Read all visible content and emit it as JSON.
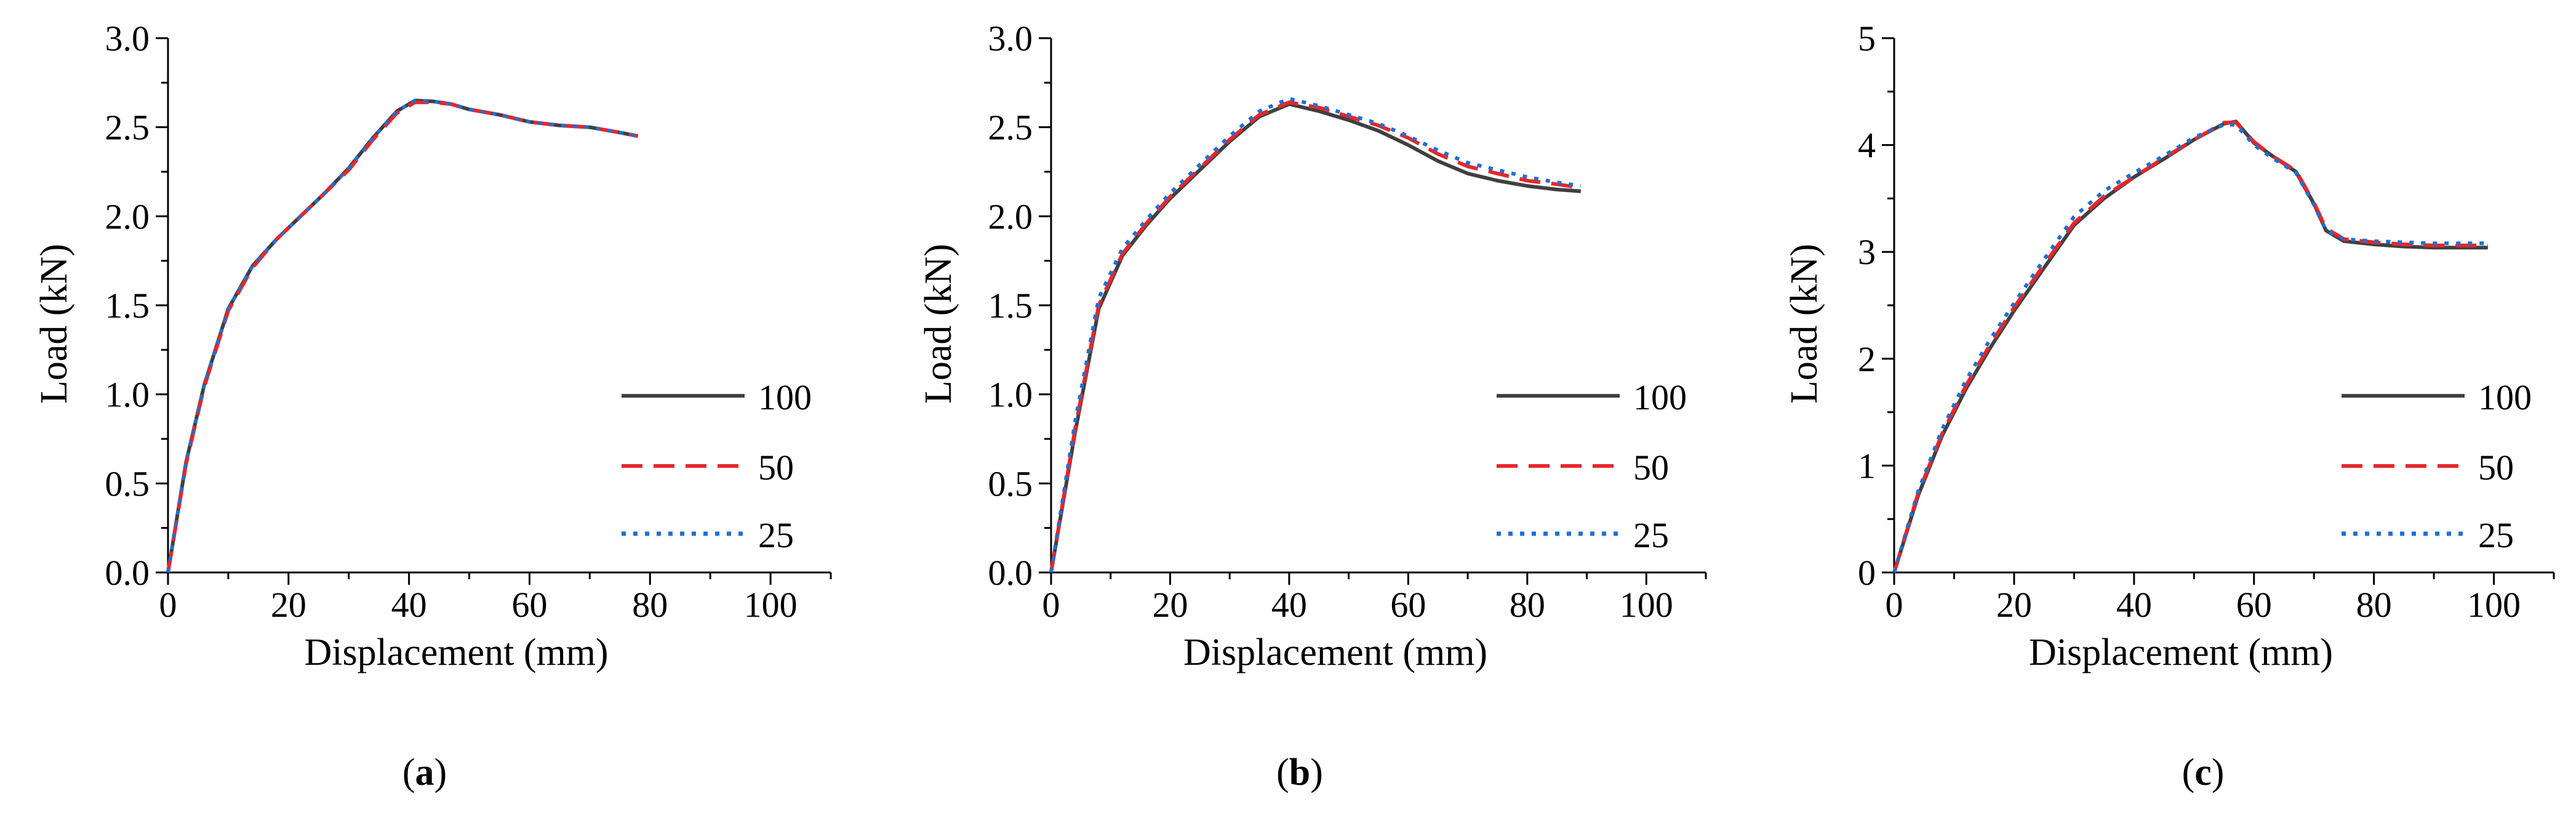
{
  "figure": {
    "panels": [
      {
        "caption": "a"
      },
      {
        "caption": "b"
      },
      {
        "caption": "c"
      }
    ],
    "series_styles": {
      "100": {
        "color": "#404040",
        "dash": "solid"
      },
      "50": {
        "color": "#e8262b",
        "dash": "dashed"
      },
      "25": {
        "color": "#1f6fd1",
        "dash": "dotted"
      }
    }
  },
  "chart_data": [
    {
      "type": "line",
      "title": "",
      "xlabel": "Displacement (mm)",
      "ylabel": "Load (kN)",
      "xlim": [
        0,
        110
      ],
      "ylim": [
        0,
        3.0
      ],
      "xticks": [
        0,
        20,
        40,
        60,
        80,
        100
      ],
      "xtick_labels": [
        "0",
        "20",
        "40",
        "60",
        "80",
        "100"
      ],
      "yticks": [
        0,
        0.5,
        1.0,
        1.5,
        2.0,
        2.5,
        3.0
      ],
      "ytick_labels": [
        "0.0",
        "0.5",
        "1.0",
        "1.5",
        "2.0",
        "2.5",
        "3.0"
      ],
      "legend": [
        "100",
        "50",
        "25"
      ],
      "legend_position": "right",
      "series": [
        {
          "name": "100",
          "x": [
            0,
            3,
            6,
            10,
            14,
            18,
            22,
            26,
            30,
            34,
            38,
            41,
            44,
            47,
            50,
            55,
            60,
            65,
            70,
            75,
            78
          ],
          "y": [
            0,
            0.62,
            1.05,
            1.48,
            1.72,
            1.87,
            2.0,
            2.13,
            2.27,
            2.44,
            2.59,
            2.65,
            2.645,
            2.63,
            2.6,
            2.57,
            2.53,
            2.51,
            2.5,
            2.47,
            2.45
          ]
        },
        {
          "name": "50",
          "x": [
            0,
            3,
            6,
            10,
            14,
            18,
            22,
            26,
            30,
            34,
            38,
            41,
            44,
            47,
            50,
            55,
            60,
            65,
            70,
            75,
            78
          ],
          "y": [
            0,
            0.61,
            1.04,
            1.47,
            1.71,
            1.87,
            2.0,
            2.13,
            2.26,
            2.43,
            2.58,
            2.64,
            2.64,
            2.63,
            2.6,
            2.57,
            2.53,
            2.51,
            2.5,
            2.47,
            2.45
          ]
        },
        {
          "name": "25",
          "x": [
            0,
            3,
            6,
            10,
            14,
            18,
            22,
            26,
            30,
            34,
            38,
            41,
            44,
            47,
            50,
            55,
            60,
            65,
            70,
            75,
            78
          ],
          "y": [
            0,
            0.62,
            1.05,
            1.48,
            1.72,
            1.87,
            2.0,
            2.13,
            2.27,
            2.44,
            2.59,
            2.65,
            2.645,
            2.63,
            2.6,
            2.57,
            2.53,
            2.51,
            2.5,
            2.47,
            2.45
          ]
        }
      ]
    },
    {
      "type": "line",
      "title": "",
      "xlabel": "Displacement (mm)",
      "ylabel": "Load (kN)",
      "xlim": [
        0,
        110
      ],
      "ylim": [
        0,
        3.0
      ],
      "xticks": [
        0,
        20,
        40,
        60,
        80,
        100
      ],
      "xtick_labels": [
        "0",
        "20",
        "40",
        "60",
        "80",
        "100"
      ],
      "yticks": [
        0,
        0.5,
        1.0,
        1.5,
        2.0,
        2.5,
        3.0
      ],
      "ytick_labels": [
        "0.0",
        "0.5",
        "1.0",
        "1.5",
        "2.0",
        "2.5",
        "3.0"
      ],
      "legend": [
        "100",
        "50",
        "25"
      ],
      "legend_position": "right",
      "series": [
        {
          "name": "100",
          "x": [
            0,
            4,
            8,
            12,
            16,
            20,
            25,
            30,
            35,
            40,
            45,
            50,
            55,
            60,
            65,
            70,
            75,
            80,
            85,
            89
          ],
          "y": [
            0,
            0.78,
            1.48,
            1.78,
            1.95,
            2.1,
            2.26,
            2.42,
            2.56,
            2.63,
            2.59,
            2.54,
            2.48,
            2.4,
            2.31,
            2.24,
            2.2,
            2.17,
            2.15,
            2.14
          ]
        },
        {
          "name": "50",
          "x": [
            0,
            4,
            8,
            12,
            16,
            20,
            25,
            30,
            35,
            40,
            45,
            50,
            55,
            60,
            65,
            70,
            75,
            80,
            85,
            89
          ],
          "y": [
            0,
            0.8,
            1.5,
            1.79,
            1.96,
            2.11,
            2.27,
            2.43,
            2.57,
            2.64,
            2.61,
            2.56,
            2.51,
            2.44,
            2.35,
            2.28,
            2.24,
            2.2,
            2.18,
            2.16
          ]
        },
        {
          "name": "25",
          "x": [
            0,
            4,
            8,
            12,
            16,
            20,
            25,
            30,
            35,
            40,
            45,
            50,
            55,
            60,
            65,
            70,
            75,
            80,
            85,
            89
          ],
          "y": [
            0,
            0.84,
            1.54,
            1.82,
            1.98,
            2.13,
            2.29,
            2.45,
            2.59,
            2.66,
            2.62,
            2.57,
            2.52,
            2.45,
            2.37,
            2.3,
            2.26,
            2.22,
            2.19,
            2.17
          ]
        }
      ]
    },
    {
      "type": "line",
      "title": "",
      "xlabel": "Displacement (mm)",
      "ylabel": "Load (kN)",
      "xlim": [
        0,
        110
      ],
      "ylim": [
        0,
        5
      ],
      "xticks": [
        0,
        20,
        40,
        60,
        80,
        100
      ],
      "xtick_labels": [
        "0",
        "20",
        "40",
        "60",
        "80",
        "100"
      ],
      "yticks": [
        0,
        1,
        2,
        3,
        4,
        5
      ],
      "ytick_labels": [
        "0",
        "1",
        "2",
        "3",
        "4",
        "5"
      ],
      "legend": [
        "100",
        "50",
        "25"
      ],
      "legend_position": "right",
      "series": [
        {
          "name": "100",
          "x": [
            0,
            4,
            8,
            12,
            16,
            20,
            25,
            30,
            35,
            40,
            45,
            50,
            55,
            57,
            60,
            63,
            67,
            70,
            72,
            75,
            80,
            85,
            90,
            95,
            99
          ],
          "y": [
            0,
            0.72,
            1.28,
            1.72,
            2.1,
            2.45,
            2.85,
            3.25,
            3.5,
            3.7,
            3.87,
            4.05,
            4.2,
            4.22,
            4.02,
            3.9,
            3.75,
            3.45,
            3.2,
            3.1,
            3.07,
            3.05,
            3.04,
            3.04,
            3.04
          ]
        },
        {
          "name": "50",
          "x": [
            0,
            4,
            8,
            12,
            16,
            20,
            25,
            30,
            35,
            40,
            45,
            50,
            55,
            57,
            60,
            63,
            67,
            70,
            72,
            75,
            80,
            85,
            90,
            95,
            99
          ],
          "y": [
            0,
            0.74,
            1.3,
            1.75,
            2.13,
            2.48,
            2.88,
            3.27,
            3.52,
            3.7,
            3.88,
            4.05,
            4.21,
            4.21,
            4.03,
            3.9,
            3.76,
            3.46,
            3.22,
            3.12,
            3.09,
            3.07,
            3.06,
            3.06,
            3.06
          ]
        },
        {
          "name": "25",
          "x": [
            0,
            4,
            8,
            12,
            16,
            20,
            25,
            30,
            35,
            40,
            45,
            50,
            55,
            57,
            60,
            63,
            67,
            70,
            72,
            75,
            80,
            85,
            90,
            95,
            99
          ],
          "y": [
            0,
            0.76,
            1.34,
            1.8,
            2.18,
            2.52,
            2.93,
            3.33,
            3.57,
            3.74,
            3.9,
            4.07,
            4.19,
            4.19,
            4.0,
            3.88,
            3.74,
            3.44,
            3.2,
            3.12,
            3.1,
            3.09,
            3.08,
            3.08,
            3.08
          ]
        }
      ]
    }
  ]
}
